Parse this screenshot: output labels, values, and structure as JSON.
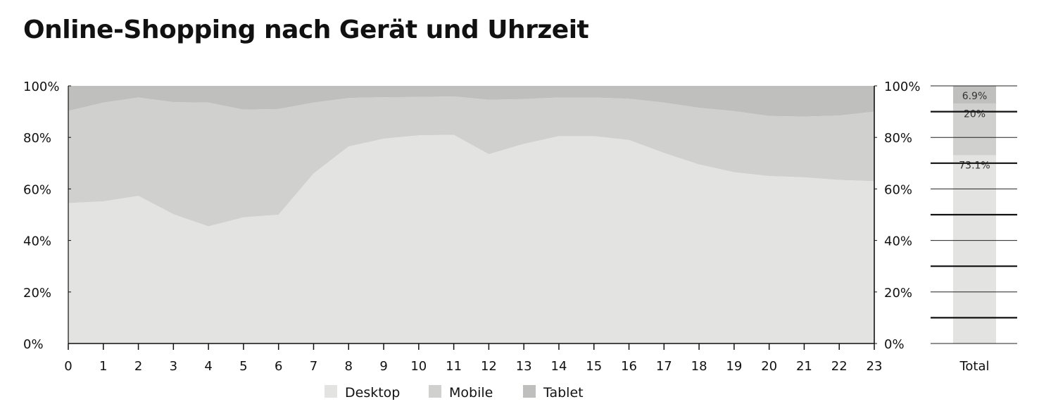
{
  "chart_data": [
    {
      "type": "area",
      "stacked": true,
      "percent": true,
      "title": "Online-Shopping nach Gerät und Uhrzeit",
      "x": [
        "0",
        "1",
        "2",
        "3",
        "4",
        "5",
        "6",
        "7",
        "8",
        "9",
        "10",
        "11",
        "12",
        "13",
        "14",
        "15",
        "16",
        "17",
        "18",
        "19",
        "20",
        "21",
        "22",
        "23"
      ],
      "y_ticks": [
        "0%",
        "20%",
        "40%",
        "60%",
        "80%",
        "100%"
      ],
      "ylim": [
        0,
        100
      ],
      "y_axis_sides": [
        "left",
        "right"
      ],
      "series": [
        {
          "name": "Desktop",
          "color": "#e3e3e1",
          "values": [
            54.5,
            55.2,
            57.3,
            50.2,
            45.5,
            49.0,
            50.0,
            66.0,
            76.5,
            79.5,
            80.8,
            81.0,
            73.5,
            77.5,
            80.5,
            80.5,
            79.0,
            74.0,
            69.5,
            66.5,
            65.0,
            64.5,
            63.5,
            63.0
          ]
        },
        {
          "name": "Mobile",
          "color": "#d0d0cf",
          "values": [
            35.8,
            38.3,
            38.2,
            43.5,
            48.0,
            41.8,
            41.0,
            27.5,
            18.8,
            16.1,
            14.9,
            14.9,
            21.1,
            17.4,
            15.0,
            15.0,
            16.0,
            19.5,
            22.0,
            23.7,
            23.3,
            23.6,
            25.0,
            27.0
          ]
        },
        {
          "name": "Tablet",
          "color": "#bfbfbd",
          "values": [
            9.7,
            6.5,
            4.5,
            6.3,
            6.5,
            9.2,
            9.0,
            6.5,
            4.7,
            4.4,
            4.3,
            4.1,
            5.4,
            5.1,
            4.5,
            4.5,
            5.0,
            6.5,
            8.5,
            9.8,
            11.7,
            11.9,
            11.5,
            10.0
          ]
        }
      ],
      "legend": {
        "placement": "bottom",
        "items": [
          "Desktop",
          "Mobile",
          "Tablet"
        ]
      },
      "grid": false
    },
    {
      "type": "bar",
      "stacked": true,
      "percent": true,
      "categories": [
        "Total"
      ],
      "series": [
        {
          "name": "Desktop",
          "color": "#e3e3e1",
          "values": [
            73.1
          ],
          "label": "73.1%"
        },
        {
          "name": "Mobile",
          "color": "#d0d0cf",
          "values": [
            20.0
          ],
          "label": "20%"
        },
        {
          "name": "Tablet",
          "color": "#bfbfbd",
          "values": [
            6.9
          ],
          "label": "6.9%"
        }
      ],
      "ylim": [
        0,
        100
      ]
    }
  ]
}
